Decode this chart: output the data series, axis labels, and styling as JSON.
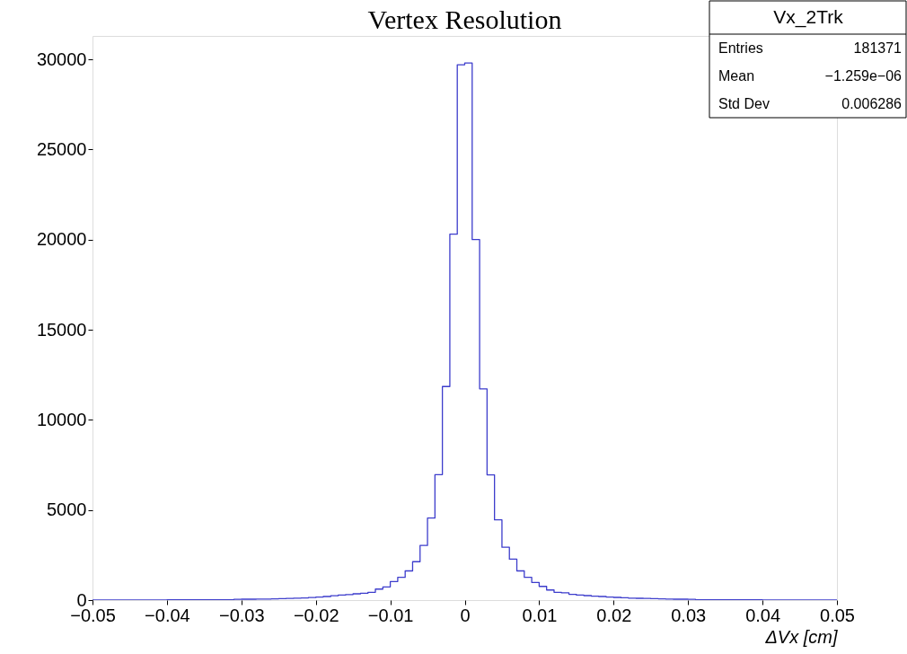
{
  "chart_data": {
    "type": "histogram",
    "title": "Vertex Resolution",
    "xlabel": "ΔVx  [cm]",
    "color": "#3d3dcc",
    "bins": [
      -0.05,
      -0.049,
      -0.048,
      -0.047,
      -0.046,
      -0.045,
      -0.044,
      -0.043,
      -0.042,
      -0.041,
      -0.04,
      -0.039,
      -0.038,
      -0.037,
      -0.036,
      -0.035,
      -0.034,
      -0.033,
      -0.032,
      -0.031,
      -0.03,
      -0.029,
      -0.028,
      -0.027,
      -0.026,
      -0.025,
      -0.024,
      -0.023,
      -0.022,
      -0.021,
      -0.02,
      -0.019,
      -0.018,
      -0.017,
      -0.016,
      -0.015,
      -0.014,
      -0.013,
      -0.012,
      -0.011,
      -0.01,
      -0.009,
      -0.008,
      -0.007,
      -0.006,
      -0.005,
      -0.004,
      -0.003,
      -0.002,
      -0.001,
      0,
      0.001,
      0.002,
      0.003,
      0.004,
      0.005,
      0.006,
      0.007,
      0.008,
      0.009,
      0.01,
      0.011,
      0.012,
      0.013,
      0.014,
      0.015,
      0.016,
      0.017,
      0.018,
      0.019,
      0.02,
      0.021,
      0.022,
      0.023,
      0.024,
      0.025,
      0.026,
      0.027,
      0.028,
      0.029,
      0.03,
      0.031,
      0.032,
      0.033,
      0.034,
      0.035,
      0.036,
      0.037,
      0.038,
      0.039,
      0.04,
      0.041,
      0.042,
      0.043,
      0.044,
      0.045,
      0.046,
      0.047,
      0.048,
      0.049,
      0.05
    ],
    "values": [
      10,
      10,
      10,
      10,
      10,
      10,
      10,
      10,
      10,
      10,
      20,
      20,
      20,
      20,
      20,
      20,
      20,
      20,
      20,
      40,
      50,
      50,
      60,
      60,
      70,
      80,
      90,
      110,
      120,
      140,
      170,
      200,
      240,
      280,
      310,
      350,
      380,
      430,
      610,
      730,
      1030,
      1260,
      1620,
      2130,
      3030,
      4550,
      6960,
      11850,
      20300,
      29700,
      29800,
      20000,
      11720,
      6950,
      4450,
      2930,
      2270,
      1620,
      1260,
      980,
      760,
      560,
      430,
      400,
      320,
      280,
      250,
      220,
      200,
      170,
      150,
      130,
      110,
      100,
      90,
      80,
      70,
      60,
      50,
      50,
      40,
      20,
      20,
      20,
      20,
      20,
      20,
      20,
      20,
      20,
      10,
      10,
      10,
      10,
      10,
      10,
      10,
      10,
      10,
      10
    ],
    "xlim": [
      -0.05,
      0.05
    ],
    "xticks": [
      {
        "value": -0.05,
        "label": "−0.05"
      },
      {
        "value": -0.04,
        "label": "−0.04"
      },
      {
        "value": -0.03,
        "label": "−0.03"
      },
      {
        "value": -0.02,
        "label": "−0.02"
      },
      {
        "value": -0.01,
        "label": "−0.01"
      },
      0,
      0.01,
      0.02,
      0.03,
      0.04,
      0.05
    ],
    "ylim": [
      0,
      31300
    ],
    "yticks": [
      0,
      5000,
      10000,
      15000,
      20000,
      25000,
      30000
    ],
    "annotations": [
      "Vx_2Trk",
      "Entries",
      "181371",
      "Mean",
      "−1.259e−06",
      "Std Dev",
      "0.006286"
    ]
  }
}
